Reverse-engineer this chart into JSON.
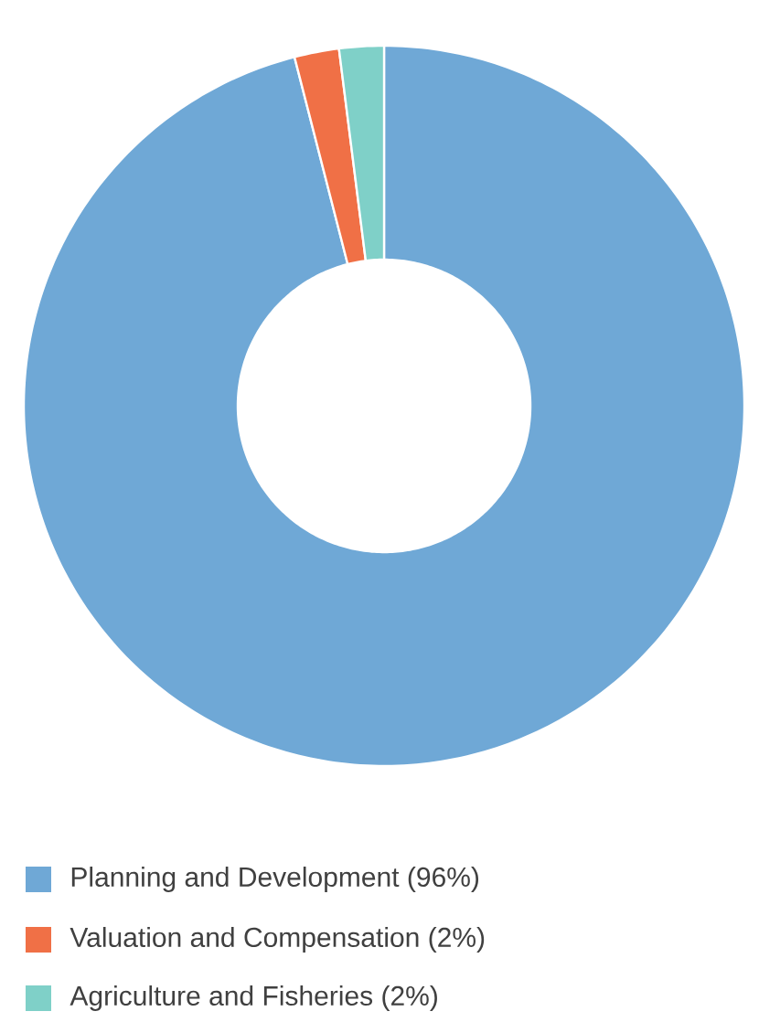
{
  "chart_data": {
    "type": "donut",
    "categories": [
      "Planning and Development (96%)",
      "Valuation and Compensation (2%)",
      "Agriculture and Fisheries (2%)"
    ],
    "values": [
      96,
      2,
      2
    ],
    "colors": [
      "#6fa8d6",
      "#f07046",
      "#7fd0c8"
    ],
    "legend": "bottom"
  }
}
